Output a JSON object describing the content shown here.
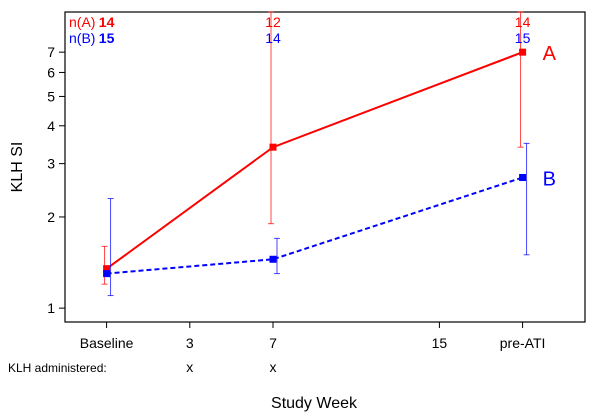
{
  "chart_data": {
    "type": "line",
    "xlabel": "Study Week",
    "ylabel": "KLH SI",
    "yscale": "log",
    "ylim": [
      0.9,
      9.5
    ],
    "yticks": [
      1,
      2,
      3,
      4,
      5,
      6,
      7
    ],
    "xlim": [
      -2,
      23
    ],
    "xticks": [
      {
        "x": 0,
        "label": "Baseline"
      },
      {
        "x": 4,
        "label": "3"
      },
      {
        "x": 8,
        "label": "7"
      },
      {
        "x": 16,
        "label": "15"
      },
      {
        "x": 20,
        "label": "pre-ATI"
      }
    ],
    "klh_administered": {
      "label": "KLH administered:",
      "marks": [
        {
          "x": 4,
          "label": "x"
        },
        {
          "x": 8,
          "label": "x"
        }
      ]
    },
    "n_labels": {
      "A": {
        "label": "n(A)",
        "counts": [
          {
            "x": 0,
            "value": "14"
          },
          {
            "x": 8,
            "value": "12"
          },
          {
            "x": 20,
            "value": "14"
          }
        ]
      },
      "B": {
        "label": "n(B)",
        "counts": [
          {
            "x": 0,
            "value": "15"
          },
          {
            "x": 8,
            "value": "14"
          },
          {
            "x": 20,
            "value": "15"
          }
        ]
      }
    },
    "series": [
      {
        "name": "A",
        "color": "#ff0000",
        "dash": "solid",
        "points": [
          {
            "x": 0,
            "y": 1.35,
            "lo": 1.2,
            "hi": 1.6
          },
          {
            "x": 8,
            "y": 3.4,
            "lo": 1.9,
            "hi": 9.5
          },
          {
            "x": 20,
            "y": 7.0,
            "lo": 3.4,
            "hi": 9.5
          }
        ]
      },
      {
        "name": "B",
        "color": "#0000ff",
        "dash": "dashed",
        "points": [
          {
            "x": 0,
            "y": 1.3,
            "lo": 1.1,
            "hi": 2.3
          },
          {
            "x": 8,
            "y": 1.45,
            "lo": 1.3,
            "hi": 1.7
          },
          {
            "x": 20,
            "y": 2.7,
            "lo": 1.5,
            "hi": 3.5
          }
        ]
      }
    ]
  }
}
